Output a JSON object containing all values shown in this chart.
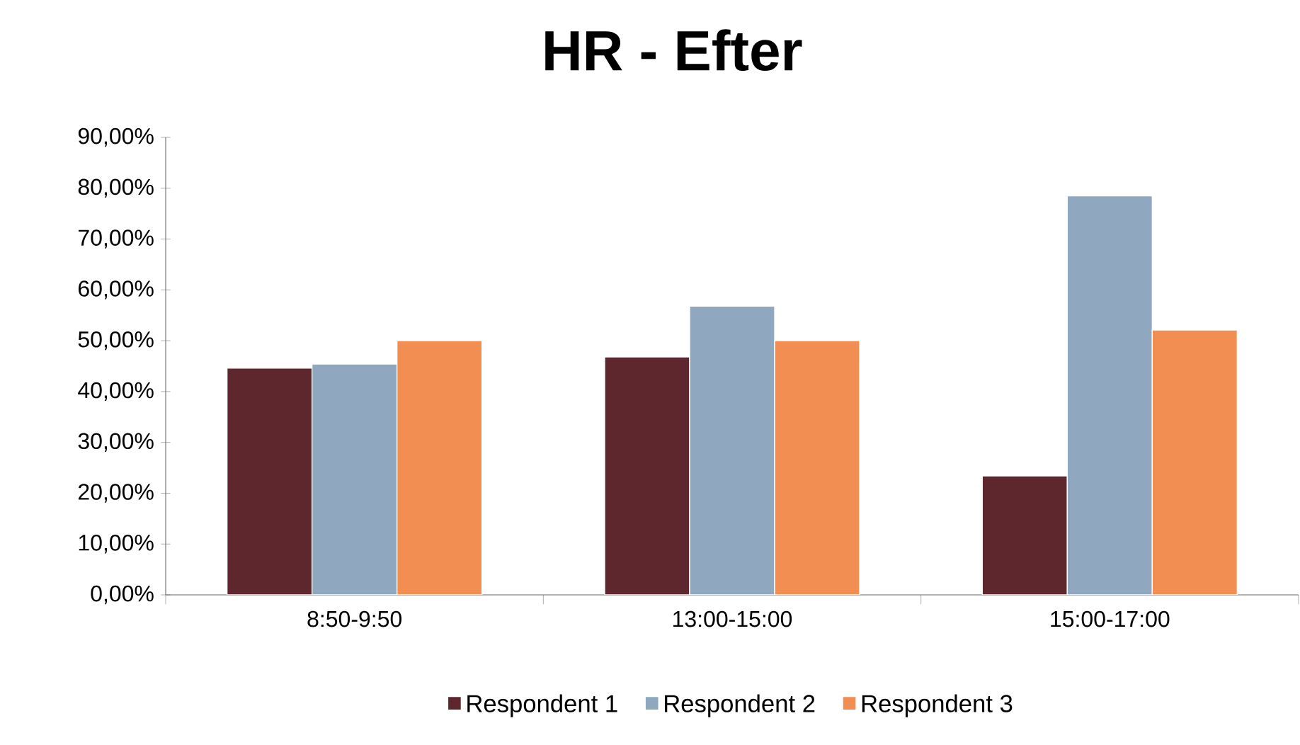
{
  "chart_data": {
    "type": "bar",
    "title": "HR - Efter",
    "categories": [
      "8:50-9:50",
      "13:00-15:00",
      "15:00-17:00"
    ],
    "series": [
      {
        "name": "Respondent 1",
        "color": "#5e272d",
        "values": [
          44.6,
          46.8,
          23.4
        ]
      },
      {
        "name": "Respondent 2",
        "color": "#8fa8c0",
        "values": [
          45.4,
          56.8,
          78.5
        ]
      },
      {
        "name": "Respondent 3",
        "color": "#f28e52",
        "values": [
          50.0,
          50.0,
          52.1
        ]
      }
    ],
    "ylim": [
      0,
      90
    ],
    "yticks": [
      {
        "value": 0,
        "label": "0,00%"
      },
      {
        "value": 10,
        "label": "10,00%"
      },
      {
        "value": 20,
        "label": "20,00%"
      },
      {
        "value": 30,
        "label": "30,00%"
      },
      {
        "value": 40,
        "label": "40,00%"
      },
      {
        "value": 50,
        "label": "50,00%"
      },
      {
        "value": 60,
        "label": "60,00%"
      },
      {
        "value": 70,
        "label": "70,00%"
      },
      {
        "value": 80,
        "label": "80,00%"
      },
      {
        "value": 90,
        "label": "90,00%"
      }
    ],
    "grid": false,
    "legend": "bottom"
  }
}
